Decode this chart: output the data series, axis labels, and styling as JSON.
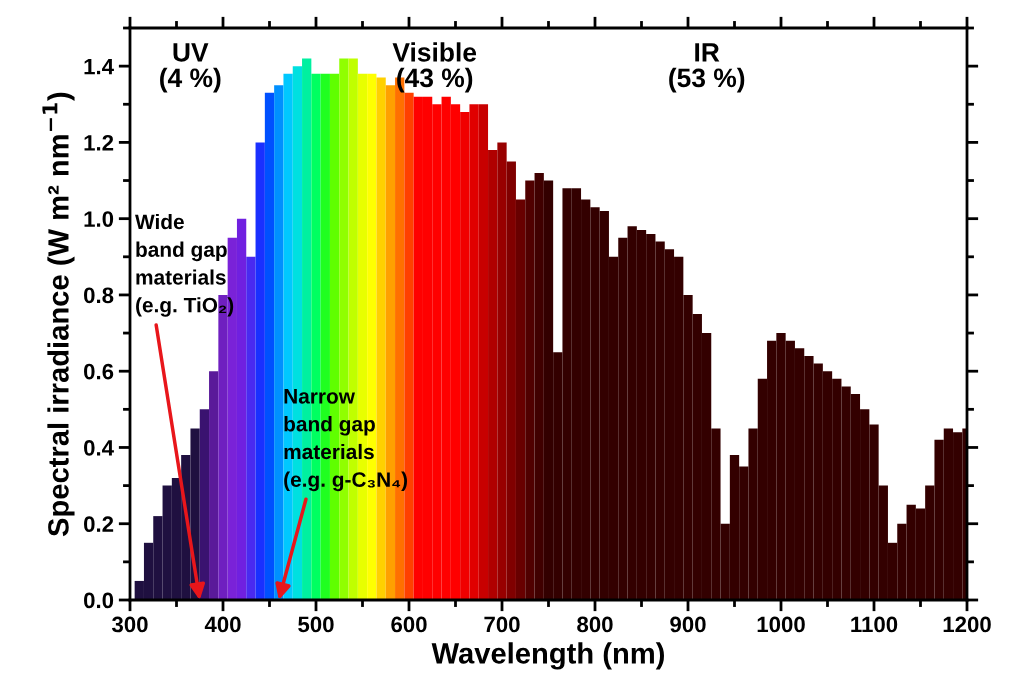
{
  "chart_data": {
    "type": "bar",
    "xlabel": "Wavelength (nm)",
    "ylabel": "Spectral irradiance (W m² nm$^{−1}$)",
    "x": [
      300,
      310,
      320,
      330,
      340,
      350,
      360,
      370,
      380,
      390,
      400,
      410,
      420,
      430,
      440,
      450,
      460,
      470,
      480,
      490,
      500,
      510,
      520,
      530,
      540,
      550,
      560,
      570,
      580,
      590,
      600,
      610,
      620,
      630,
      640,
      650,
      660,
      670,
      680,
      690,
      700,
      710,
      720,
      730,
      740,
      750,
      760,
      770,
      780,
      790,
      800,
      810,
      820,
      830,
      840,
      850,
      860,
      870,
      880,
      890,
      900,
      910,
      920,
      930,
      940,
      950,
      960,
      970,
      980,
      990,
      1000,
      1010,
      1020,
      1030,
      1040,
      1050,
      1060,
      1070,
      1080,
      1090,
      1100,
      1110,
      1120,
      1130,
      1140,
      1150,
      1160,
      1170,
      1180,
      1190,
      1200
    ],
    "values": [
      0.0,
      0.05,
      0.15,
      0.22,
      0.3,
      0.32,
      0.38,
      0.45,
      0.5,
      0.6,
      0.8,
      0.95,
      1.0,
      0.9,
      1.2,
      1.33,
      1.35,
      1.38,
      1.4,
      1.42,
      1.38,
      1.38,
      1.38,
      1.42,
      1.42,
      1.38,
      1.38,
      1.37,
      1.35,
      1.37,
      1.33,
      1.32,
      1.32,
      1.3,
      1.32,
      1.3,
      1.28,
      1.3,
      1.3,
      1.18,
      1.2,
      1.15,
      1.05,
      1.1,
      1.12,
      1.1,
      0.65,
      1.08,
      1.08,
      1.05,
      1.03,
      1.02,
      0.9,
      0.95,
      0.98,
      0.97,
      0.96,
      0.94,
      0.92,
      0.9,
      0.8,
      0.75,
      0.7,
      0.45,
      0.2,
      0.38,
      0.35,
      0.45,
      0.58,
      0.68,
      0.7,
      0.68,
      0.66,
      0.64,
      0.62,
      0.6,
      0.58,
      0.56,
      0.54,
      0.5,
      0.46,
      0.3,
      0.15,
      0.2,
      0.25,
      0.24,
      0.3,
      0.42,
      0.45,
      0.44,
      0.45
    ],
    "colors": [
      "#1f1040",
      "#1f1040",
      "#1f1040",
      "#1f1040",
      "#1f1040",
      "#1f1040",
      "#1f1040",
      "#1f1040",
      "#3a1270",
      "#5a1a9a",
      "#6f1fc0",
      "#7a22d8",
      "#7020e0",
      "#4a2af0",
      "#1a30ff",
      "#0050ff",
      "#0090ff",
      "#00c8ff",
      "#00e0e0",
      "#00f0a0",
      "#00ff60",
      "#20ff20",
      "#60ff00",
      "#90ff00",
      "#c0ff00",
      "#e8ff00",
      "#ffff00",
      "#ffd000",
      "#ffa000",
      "#ff7000",
      "#ff4000",
      "#ff0000",
      "#ff0000",
      "#ff0000",
      "#ff0000",
      "#ff0000",
      "#f00000",
      "#e00000",
      "#c80000",
      "#b00000",
      "#980000",
      "#800000",
      "#680000",
      "#500000",
      "#400000",
      "#330000",
      "#330000",
      "#330000",
      "#330000",
      "#330000",
      "#330000",
      "#330000",
      "#330000",
      "#330000",
      "#330000",
      "#330000",
      "#330000",
      "#330000",
      "#330000",
      "#330000",
      "#330000",
      "#330000",
      "#330000",
      "#330000",
      "#330000",
      "#330000",
      "#330000",
      "#330000",
      "#330000",
      "#330000",
      "#330000",
      "#330000",
      "#330000",
      "#330000",
      "#330000",
      "#330000",
      "#330000",
      "#330000",
      "#330000",
      "#330000",
      "#330000",
      "#330000",
      "#330000",
      "#330000",
      "#330000",
      "#330000",
      "#330000",
      "#330000",
      "#330000",
      "#330000",
      "#330000"
    ],
    "xlim": [
      300,
      1200
    ],
    "xticks": [
      300,
      400,
      500,
      600,
      700,
      800,
      900,
      1000,
      1100,
      1200
    ],
    "ylim": [
      0,
      1.5
    ],
    "yticks": [
      {
        "value": 0,
        "label": "0.0"
      },
      {
        "value": 0.2,
        "label": "0.2"
      },
      {
        "value": 0.4,
        "label": "0.4"
      },
      {
        "value": 0.6,
        "label": "0.6"
      },
      {
        "value": 0.8,
        "label": "0.8"
      },
      {
        "value": 1.0,
        "label": "1.0"
      },
      {
        "value": 1.2,
        "label": "1.2"
      },
      {
        "value": 1.4,
        "label": "1.4"
      }
    ],
    "annotations": [
      "UV\n(4 %)",
      "Visible\n(43 %)",
      "IR\n(53 %)",
      {
        "text": "Wide\nband gap\nmaterials\n(e.g. TiO₂)",
        "x": 375,
        "y": 0
      },
      {
        "text": "Narrow\nband gap\nmaterials\n(e.g. g-C₃N₄)",
        "x": 460,
        "y": 0
      }
    ]
  }
}
